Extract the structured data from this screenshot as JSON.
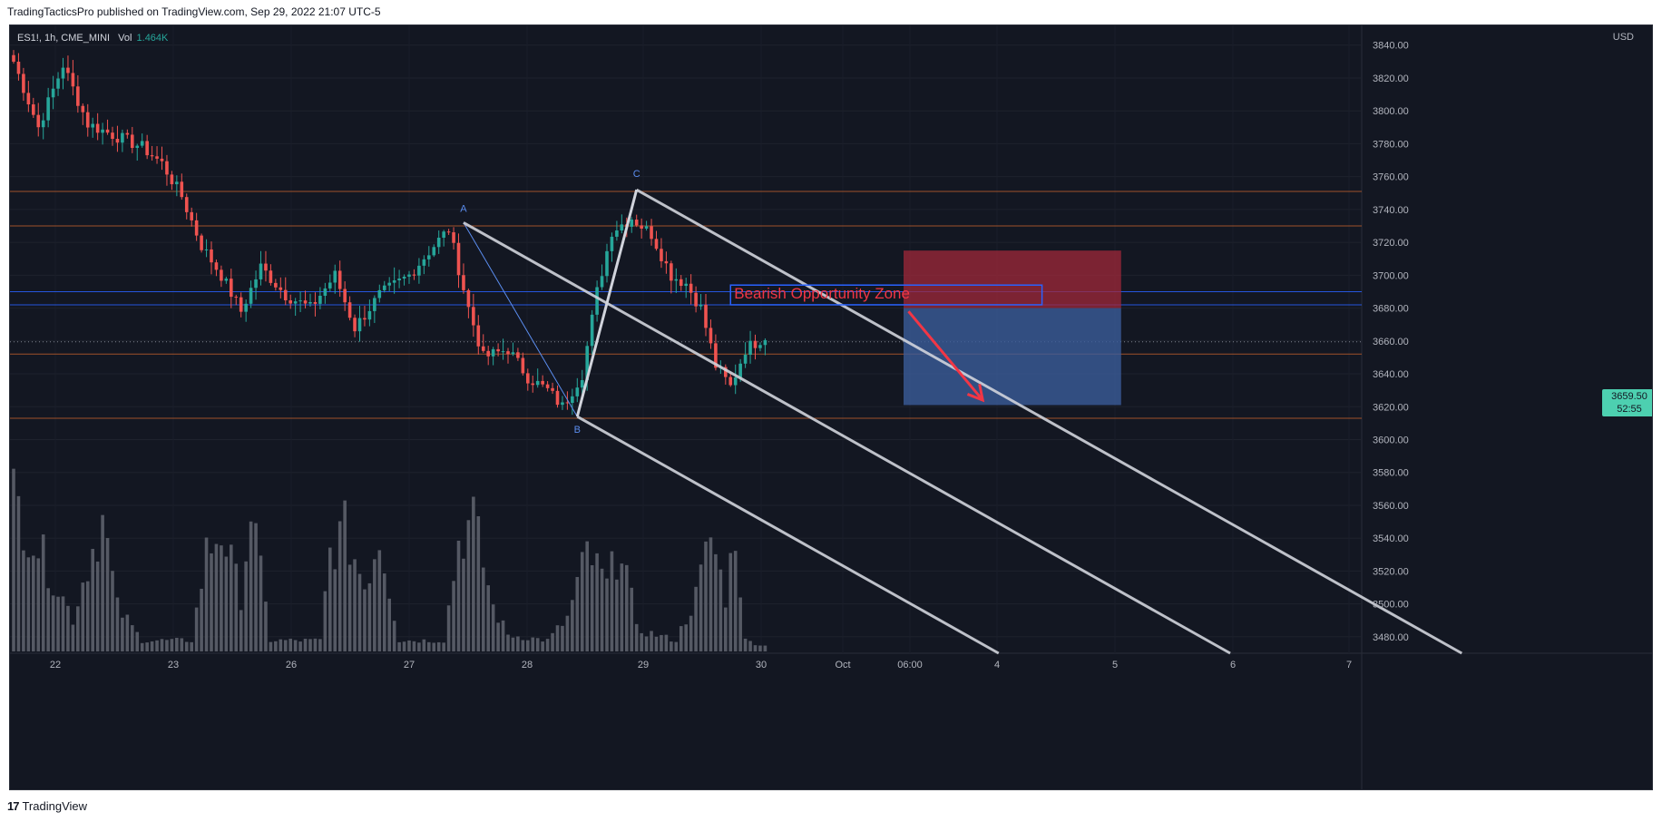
{
  "banner": {
    "text": "TradingTacticsPro published on TradingView.com, Sep 29, 2022 21:07 UTC-5"
  },
  "legend": {
    "symbol": "ES1!, 1h, CME_MINI",
    "vol_label": "Vol",
    "vol_value": "1.464K"
  },
  "currency": "USD",
  "price_tag": {
    "price": "3659.50",
    "countdown": "52:55"
  },
  "footer": {
    "brand": "TradingView",
    "logo_glyph": "17"
  },
  "colors": {
    "background": "#131722",
    "up_candle": "#26a69a",
    "down_candle": "#ef5350",
    "volume": "#5d606b",
    "resistance_line": "#b85a2b",
    "blue_line": "#2962ff",
    "pitchfork": "#d1d4dc",
    "stop_zone": "#a0283a",
    "target_zone": "#3b5d9a",
    "annotation_text": "#f23645",
    "price_tag": "#4dd0b0"
  },
  "chart_data": {
    "type": "candlestick",
    "interval": "1h",
    "ylim": [
      3470,
      3852
    ],
    "y_ticks": [
      "3840.00",
      "3820.00",
      "3800.00",
      "3780.00",
      "3760.00",
      "3740.00",
      "3720.00",
      "3700.00",
      "3680.00",
      "3660.00",
      "3640.00",
      "3620.00",
      "3600.00",
      "3580.00",
      "3560.00",
      "3540.00",
      "3520.00",
      "3500.00",
      "3480.00"
    ],
    "x_ticks": [
      "22",
      "23",
      "26",
      "27",
      "28",
      "29",
      "30",
      "Oct",
      "06:00",
      "4",
      "5",
      "6",
      "7"
    ],
    "anchors": [
      {
        "bar": 5,
        "close": 3790
      },
      {
        "bar": 10,
        "close": 3828
      },
      {
        "bar": 15,
        "close": 3792
      },
      {
        "bar": 22,
        "close": 3783
      },
      {
        "bar": 26,
        "close": 3778
      },
      {
        "bar": 30,
        "close": 3768
      },
      {
        "bar": 34,
        "close": 3748
      },
      {
        "bar": 38,
        "close": 3718
      },
      {
        "bar": 42,
        "close": 3700
      },
      {
        "bar": 46,
        "close": 3678
      },
      {
        "bar": 50,
        "close": 3705
      },
      {
        "bar": 55,
        "close": 3688
      },
      {
        "bar": 60,
        "close": 3680
      },
      {
        "bar": 65,
        "close": 3700
      },
      {
        "bar": 69,
        "close": 3668
      },
      {
        "bar": 74,
        "close": 3688
      },
      {
        "bar": 80,
        "close": 3700
      },
      {
        "bar": 85,
        "close": 3718
      },
      {
        "bar": 88,
        "close": 3728
      },
      {
        "bar": 92,
        "close": 3680
      },
      {
        "bar": 95,
        "close": 3650
      },
      {
        "bar": 100,
        "close": 3655
      },
      {
        "bar": 104,
        "close": 3638
      },
      {
        "bar": 108,
        "close": 3630
      },
      {
        "bar": 111,
        "close": 3620
      },
      {
        "bar": 115,
        "close": 3640
      },
      {
        "bar": 118,
        "close": 3690
      },
      {
        "bar": 121,
        "close": 3727
      },
      {
        "bar": 125,
        "close": 3735
      },
      {
        "bar": 129,
        "close": 3725
      },
      {
        "bar": 133,
        "close": 3700
      },
      {
        "bar": 136,
        "close": 3695
      },
      {
        "bar": 139,
        "close": 3680
      },
      {
        "bar": 142,
        "close": 3645
      },
      {
        "bar": 145,
        "close": 3632
      },
      {
        "bar": 148,
        "close": 3655
      },
      {
        "bar": 152,
        "close": 3663
      }
    ],
    "volume_anchors": [
      {
        "bar": 0,
        "v": 1.4
      },
      {
        "bar": 12,
        "v": 0.3
      },
      {
        "bar": 15,
        "v": 0.8
      },
      {
        "bar": 18,
        "v": 1.2
      },
      {
        "bar": 21,
        "v": 0.4
      },
      {
        "bar": 26,
        "v": 0.1
      },
      {
        "bar": 36,
        "v": 0.1
      },
      {
        "bar": 39,
        "v": 0.9
      },
      {
        "bar": 42,
        "v": 1.1
      },
      {
        "bar": 46,
        "v": 0.5
      },
      {
        "bar": 48,
        "v": 1.3
      },
      {
        "bar": 52,
        "v": 0.1
      },
      {
        "bar": 62,
        "v": 0.1
      },
      {
        "bar": 64,
        "v": 0.9
      },
      {
        "bar": 67,
        "v": 1.1
      },
      {
        "bar": 71,
        "v": 0.6
      },
      {
        "bar": 74,
        "v": 1.05
      },
      {
        "bar": 78,
        "v": 0.1
      },
      {
        "bar": 87,
        "v": 0.1
      },
      {
        "bar": 90,
        "v": 1.0
      },
      {
        "bar": 93,
        "v": 1.2
      },
      {
        "bar": 97,
        "v": 0.4
      },
      {
        "bar": 100,
        "v": 0.15
      },
      {
        "bar": 108,
        "v": 0.1
      },
      {
        "bar": 112,
        "v": 0.3
      },
      {
        "bar": 116,
        "v": 0.9
      },
      {
        "bar": 120,
        "v": 0.6
      },
      {
        "bar": 123,
        "v": 1.0
      },
      {
        "bar": 126,
        "v": 0.2
      },
      {
        "bar": 134,
        "v": 0.1
      },
      {
        "bar": 138,
        "v": 0.5
      },
      {
        "bar": 141,
        "v": 1.05
      },
      {
        "bar": 144,
        "v": 0.5
      },
      {
        "bar": 146,
        "v": 1.1
      },
      {
        "bar": 148,
        "v": 0.1
      },
      {
        "bar": 152,
        "v": 0.05
      }
    ],
    "horizontal_levels": [
      {
        "price": 3751,
        "color": "#b85a2b"
      },
      {
        "price": 3730,
        "color": "#b85a2b"
      },
      {
        "price": 3690,
        "color": "#2962ff"
      },
      {
        "price": 3682,
        "color": "#2962ff"
      },
      {
        "price": 3652,
        "color": "#b85a2b"
      },
      {
        "price": 3613,
        "color": "#b85a2b"
      }
    ],
    "pivots": [
      {
        "label": "A",
        "bar": 91,
        "price": 3732
      },
      {
        "label": "B",
        "bar": 114,
        "price": 3614
      },
      {
        "label": "C",
        "bar": 126,
        "price": 3752
      }
    ],
    "annotation": {
      "text": "Bearish Opportunity Zone",
      "bar_start": 145,
      "bar_end": 208,
      "price_top": 3694,
      "price_bottom": 3682
    },
    "position": {
      "bar_start": 180,
      "bar_end": 224,
      "entry": 3680,
      "stop": 3715,
      "target": 3621
    },
    "arrow": {
      "from_bar": 181,
      "from_price": 3678,
      "to_bar": 196,
      "to_price": 3624
    }
  }
}
